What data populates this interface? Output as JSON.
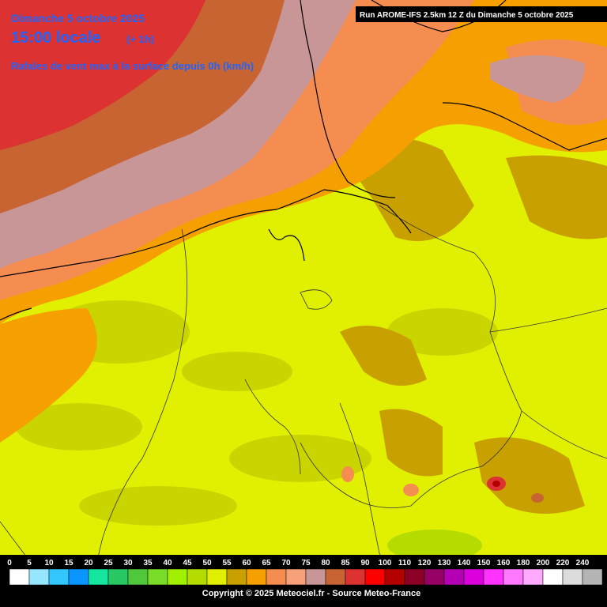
{
  "header": {
    "date": "Dimanche 5 octobre 2025",
    "time": "15:00 locale",
    "offset": "(+ 1h)",
    "parameter": "Rafales de vent max à la surface depuis 0h (km/h)",
    "run": "Run AROME-IFS 2.5km 12 Z du Dimanche 5 octobre 2025"
  },
  "legend": {
    "items": [
      {
        "label": 0,
        "color": "#ffffff"
      },
      {
        "label": 5,
        "color": "#96e6ff"
      },
      {
        "label": 10,
        "color": "#32c8ff"
      },
      {
        "label": 15,
        "color": "#0a96ff"
      },
      {
        "label": 20,
        "color": "#14e6a0"
      },
      {
        "label": 25,
        "color": "#28c864"
      },
      {
        "label": 30,
        "color": "#50c83c"
      },
      {
        "label": 35,
        "color": "#78dc28"
      },
      {
        "label": 40,
        "color": "#a0f000"
      },
      {
        "label": 45,
        "color": "#b4dc00"
      },
      {
        "label": 50,
        "color": "#e0f000"
      },
      {
        "label": 55,
        "color": "#c8a000"
      },
      {
        "label": 60,
        "color": "#f5a000"
      },
      {
        "label": 65,
        "color": "#f58c50"
      },
      {
        "label": 70,
        "color": "#f5a078"
      },
      {
        "label": 75,
        "color": "#c89696"
      },
      {
        "label": 80,
        "color": "#c86432"
      },
      {
        "label": 85,
        "color": "#dc3232"
      },
      {
        "label": 90,
        "color": "#ff0000"
      },
      {
        "label": 100,
        "color": "#b40000"
      },
      {
        "label": 110,
        "color": "#8c0028"
      },
      {
        "label": 120,
        "color": "#960064"
      },
      {
        "label": 130,
        "color": "#b400b4"
      },
      {
        "label": 140,
        "color": "#dc00dc"
      },
      {
        "label": 150,
        "color": "#ff32ff"
      },
      {
        "label": 160,
        "color": "#ff78ff"
      },
      {
        "label": 180,
        "color": "#ffaaff"
      },
      {
        "label": 200,
        "color": "#ffffff"
      },
      {
        "label": 220,
        "color": "#dcdcdc"
      },
      {
        "label": 240,
        "color": "#b4b4b4"
      }
    ]
  },
  "footer": {
    "copyright": "Copyright © 2025 Meteociel.fr - Source Meteo-France"
  }
}
